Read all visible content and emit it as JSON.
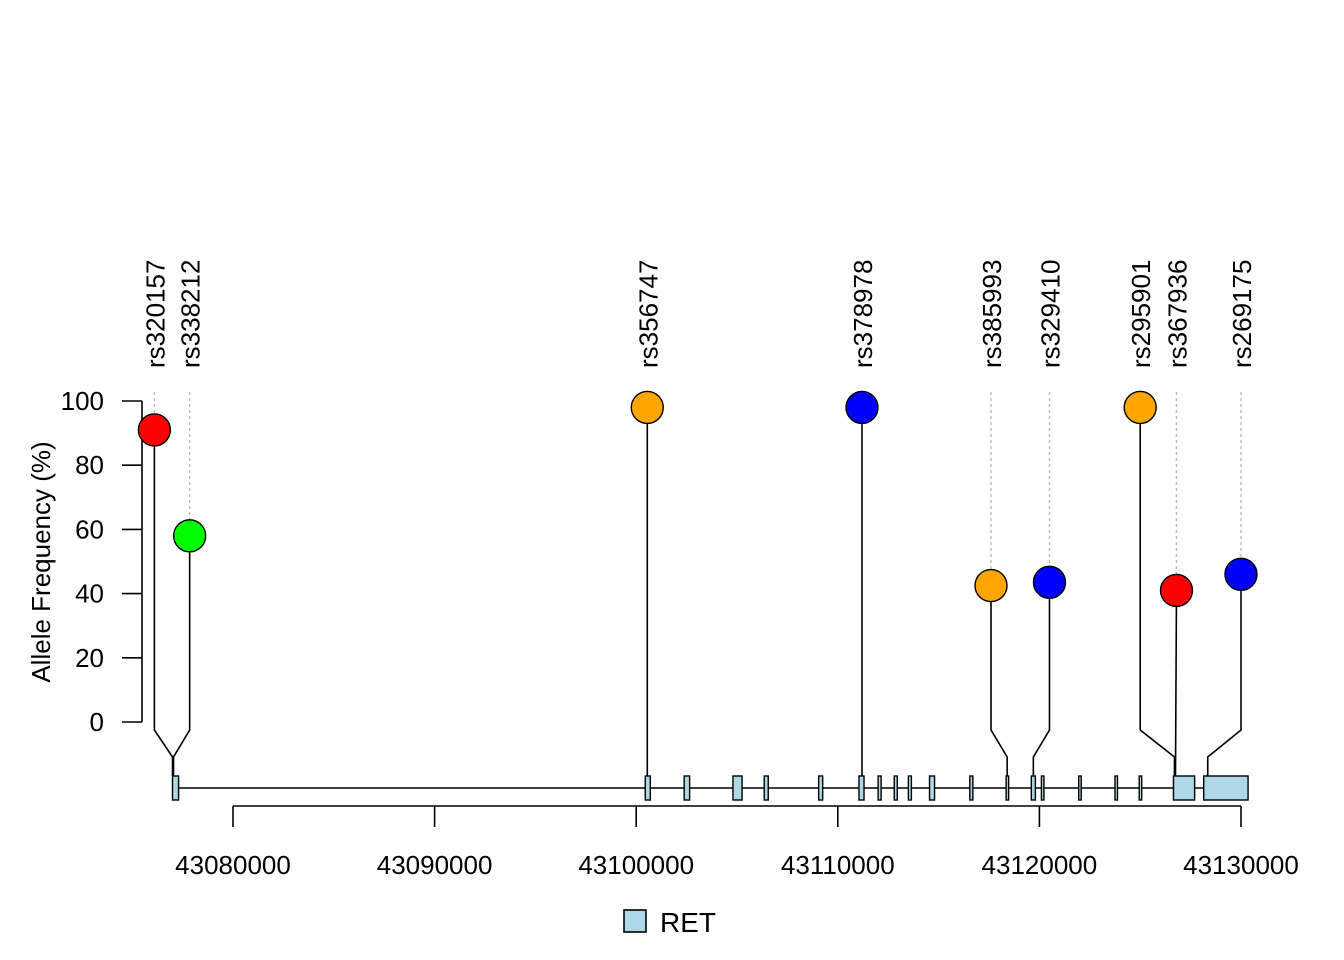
{
  "chart_data": {
    "type": "lollipop",
    "ylabel": "Allele Frequency (%)",
    "ylim": [
      0,
      100
    ],
    "yticks": [
      0,
      20,
      40,
      60,
      80,
      100
    ],
    "xticks": [
      43080000,
      43090000,
      43100000,
      43110000,
      43120000,
      43130000
    ],
    "xtick_labels": [
      "43080000",
      "43090000",
      "43100000",
      "43110000",
      "43120000",
      "43130000"
    ],
    "xlim": [
      43076000,
      43130300
    ],
    "gene": {
      "name": "RET",
      "color": "#add8e6"
    },
    "legend": {
      "label": "RET",
      "placement": "bottom-center"
    },
    "exons": [
      [
        43077000,
        43077300
      ],
      [
        43100450,
        43100700
      ],
      [
        43102380,
        43102650
      ],
      [
        43104800,
        43105250
      ],
      [
        43106350,
        43106550
      ],
      [
        43109050,
        43109250
      ],
      [
        43111050,
        43111300
      ],
      [
        43112000,
        43112150
      ],
      [
        43112800,
        43112950
      ],
      [
        43113500,
        43113650
      ],
      [
        43114550,
        43114800
      ],
      [
        43116550,
        43116700
      ],
      [
        43118350,
        43118450
      ],
      [
        43119600,
        43119800
      ],
      [
        43120100,
        43120200
      ],
      [
        43121950,
        43122050
      ],
      [
        43123750,
        43123850
      ],
      [
        43124950,
        43125050
      ],
      [
        43126650,
        43127700
      ],
      [
        43128150,
        43130350
      ]
    ],
    "points": [
      {
        "id": "rs320157",
        "x": 43077000,
        "label_x": 43076100,
        "y": 91,
        "color": "#ff0000"
      },
      {
        "id": "rs338212",
        "x": 43077050,
        "label_x": 43077850,
        "y": 58,
        "color": "#00ff00"
      },
      {
        "id": "rs356747",
        "x": 43100550,
        "label_x": 43100550,
        "y": 98,
        "color": "#ffa500"
      },
      {
        "id": "rs378978",
        "x": 43111200,
        "label_x": 43111200,
        "y": 98,
        "color": "#0000ff"
      },
      {
        "id": "rs385993",
        "x": 43118400,
        "label_x": 43117600,
        "y": 42.5,
        "color": "#ffa500"
      },
      {
        "id": "rs329410",
        "x": 43119700,
        "label_x": 43120500,
        "y": 43.5,
        "color": "#0000ff"
      },
      {
        "id": "rs295901",
        "x": 43126700,
        "label_x": 43125000,
        "y": 98,
        "color": "#ffa500"
      },
      {
        "id": "rs367936",
        "x": 43126750,
        "label_x": 43126800,
        "y": 41,
        "color": "#ff0000"
      },
      {
        "id": "rs269175",
        "x": 43128350,
        "label_x": 43130000,
        "y": 46,
        "color": "#0000ff"
      }
    ]
  }
}
